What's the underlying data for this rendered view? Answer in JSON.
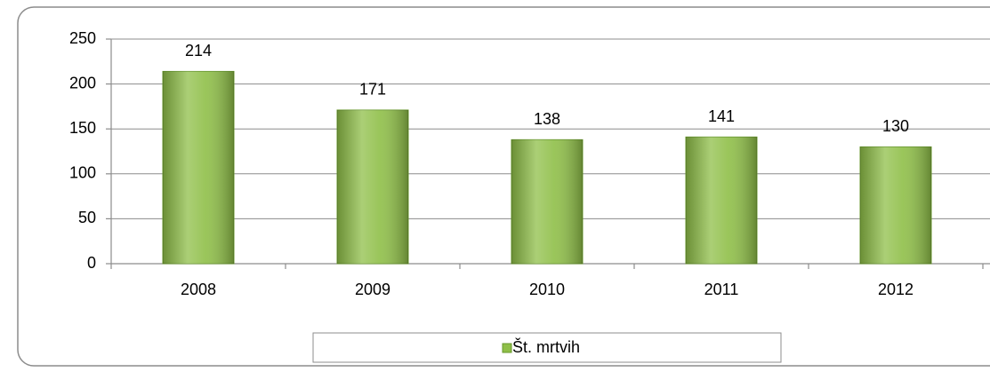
{
  "chart_data": {
    "type": "bar",
    "categories": [
      "2008",
      "2009",
      "2010",
      "2011",
      "2012"
    ],
    "series": [
      {
        "name": "Št. mrtvih",
        "color": "#8fbf48",
        "values": [
          214,
          171,
          138,
          141,
          130
        ]
      }
    ],
    "ylim": [
      0,
      250
    ],
    "yticks": [
      0,
      50,
      100,
      150,
      200,
      250
    ],
    "grid": true,
    "legend": "bottom"
  }
}
